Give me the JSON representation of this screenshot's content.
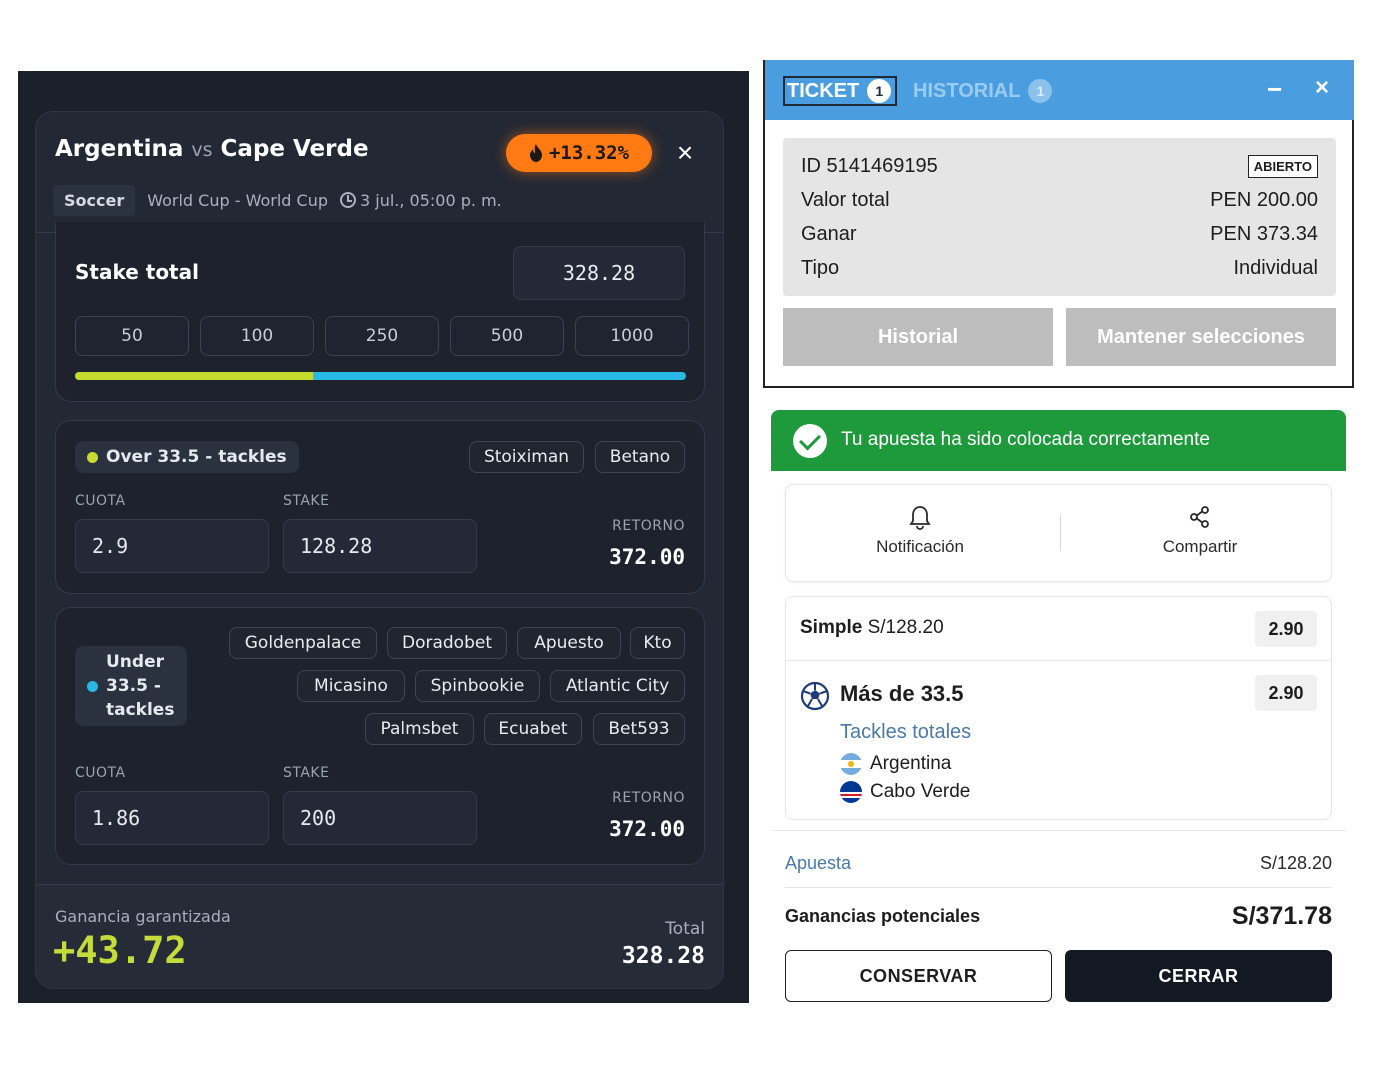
{
  "left": {
    "team_home": "Argentina",
    "vs": "vs",
    "team_away": "Cape Verde",
    "profit_pct": "+13.32%",
    "sport": "Soccer",
    "competition": "World Cup - World Cup",
    "datetime": "3 jul., 05:00 p. m.",
    "stake_label": "Stake total",
    "stake_total": "328.28",
    "quick_stakes": [
      "50",
      "100",
      "250",
      "500",
      "1000"
    ],
    "split_fraction": 0.39,
    "over": {
      "label": "Over 33.5 - tackles",
      "books": [
        "Stoiximan",
        "Betano"
      ],
      "cuota_label": "CUOTA",
      "stake_label": "STAKE",
      "cuota": "2.9",
      "stake": "128.28",
      "return_label": "RETORNO",
      "return": "372.00"
    },
    "under": {
      "label_line1": "Under",
      "label_line2": "33.5 -",
      "label_line3": "tackles",
      "books_row1": [
        "Goldenpalace",
        "Doradobet",
        "Apuesto",
        "Kto"
      ],
      "books_row2": [
        "Micasino",
        "Spinbookie",
        "Atlantic City"
      ],
      "books_row3": [
        "Palmsbet",
        "Ecuabet",
        "Bet593"
      ],
      "cuota_label": "CUOTA",
      "stake_label": "STAKE",
      "cuota": "1.86",
      "stake": "200",
      "return_label": "RETORNO",
      "return": "372.00"
    },
    "footer": {
      "gain_label": "Ganancia garantizada",
      "gain_value": "+43.72",
      "total_label": "Total",
      "total_value": "328.28"
    },
    "colors": {
      "over_dot": "#c8d930",
      "under_dot": "#29b8e6",
      "accent_orange": "#ff7a12",
      "gain_green": "#c4dc3a"
    }
  },
  "ticket": {
    "tab_ticket": "TICKET",
    "tab_ticket_count": "1",
    "tab_history": "HISTORIAL",
    "tab_history_count": "1",
    "minimize": "−",
    "close": "×",
    "id_label": "ID 5141469195",
    "status": "ABIERTO",
    "rows": [
      {
        "label": "Valor total",
        "value": "PEN 200.00"
      },
      {
        "label": "Ganar",
        "value": "PEN 373.34"
      },
      {
        "label": "Tipo",
        "value": "Individual"
      }
    ],
    "btn_history": "Historial",
    "btn_keep": "Mantener selecciones"
  },
  "confirm": {
    "success_msg": "Tu apuesta ha sido colocada correctamente",
    "notification": "Notificación",
    "share": "Compartir",
    "simple_type": "Simple",
    "simple_amount": "S/128.20",
    "simple_odds": "2.90",
    "market": "Más de 33.5",
    "market_odds": "2.90",
    "market_sub": "Tackles totales",
    "team1": "Argentina",
    "team2": "Cabo Verde",
    "stake_label": "Apuesta",
    "stake_value": "S/128.20",
    "potential_label": "Ganancias potenciales",
    "potential_value": "S/371.78",
    "btn_keep": "CONSERVAR",
    "btn_close": "CERRAR",
    "colors": {
      "success": "#1e9a3c",
      "dark_button": "#121923"
    }
  }
}
